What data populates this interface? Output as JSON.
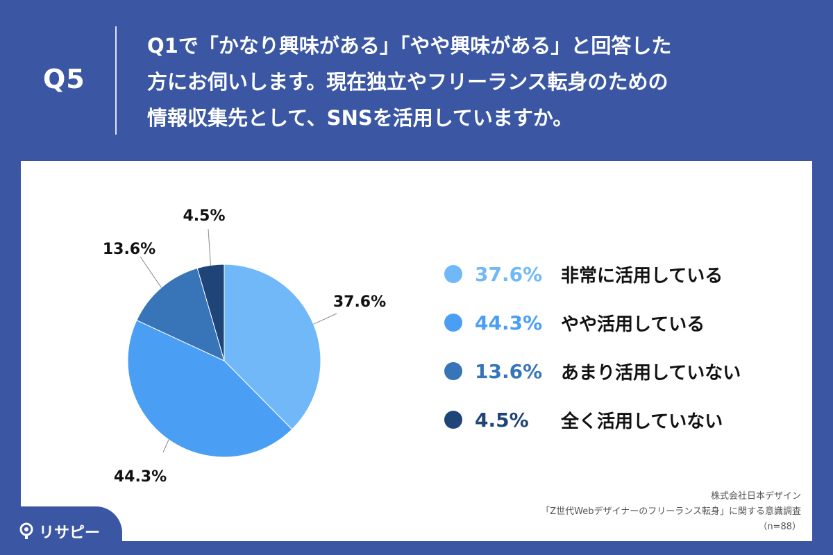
{
  "header": {
    "q_label": "Q5",
    "question_lines": [
      "Q1で「かなり興味がある」「やや興味がある」と回答した",
      "方にお伺いします。現在独立やフリーランス転身のための",
      "情報収集先として、SNSを活用していますか。"
    ]
  },
  "chart_data": {
    "type": "pie",
    "categories": [
      "非常に活用している",
      "やや活用している",
      "あまり活用していない",
      "全く活用していない"
    ],
    "values": [
      37.6,
      44.3,
      13.6,
      4.5
    ],
    "labels": [
      "37.6%",
      "44.3%",
      "13.6%",
      "4.5%"
    ],
    "colors": [
      "#70b8f8",
      "#4a9ff5",
      "#3775b8",
      "#1f4578"
    ],
    "legend_placement": "right"
  },
  "source": {
    "company": "株式会社日本デザイン",
    "survey": "「Z世代Webデザイナーのフリーランス転身」に関する意識調査",
    "sample": "（n=88）"
  },
  "logo": {
    "text": "リサピー"
  }
}
